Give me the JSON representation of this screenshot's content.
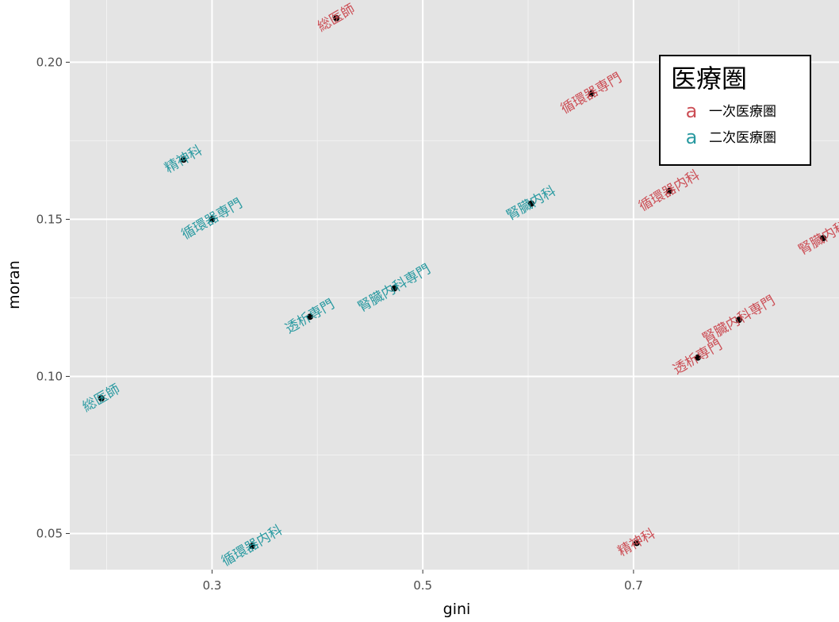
{
  "chart_data": {
    "type": "scatter",
    "xlabel": "gini",
    "ylabel": "moran",
    "xlim": [
      0.165,
      0.895
    ],
    "ylim": [
      0.0385,
      0.2198
    ],
    "x_ticks": [
      0.3,
      0.5,
      0.7
    ],
    "x_tick_labels": [
      "0.3",
      "0.5",
      "0.7"
    ],
    "y_ticks": [
      0.05,
      0.1,
      0.15,
      0.2
    ],
    "y_tick_labels": [
      "0.05",
      "0.10",
      "0.15",
      "0.20"
    ],
    "grid": true,
    "legend": {
      "title": "医療圏",
      "position": "top-right",
      "key_glyph": "a",
      "entries": [
        {
          "label": "一次医療圏",
          "color": "#CC4E55"
        },
        {
          "label": "二次医療圏",
          "color": "#2A9AA1"
        }
      ]
    },
    "series": [
      {
        "name": "一次医療圏",
        "color": "#CC4E55",
        "points": [
          {
            "x": 0.418,
            "y": 0.214,
            "label": "総医師"
          },
          {
            "x": 0.66,
            "y": 0.19,
            "label": "循環器専門"
          },
          {
            "x": 0.734,
            "y": 0.159,
            "label": "循環器内科"
          },
          {
            "x": 0.88,
            "y": 0.144,
            "label": "腎臓内科"
          },
          {
            "x": 0.8,
            "y": 0.118,
            "label": "腎臓内科専門"
          },
          {
            "x": 0.761,
            "y": 0.106,
            "label": "透析専門"
          },
          {
            "x": 0.703,
            "y": 0.047,
            "label": "精神科"
          }
        ]
      },
      {
        "name": "二次医療圏",
        "color": "#2A9AA1",
        "points": [
          {
            "x": 0.273,
            "y": 0.169,
            "label": "精神科"
          },
          {
            "x": 0.3,
            "y": 0.15,
            "label": "循環器専門"
          },
          {
            "x": 0.603,
            "y": 0.155,
            "label": "腎臓内科"
          },
          {
            "x": 0.473,
            "y": 0.128,
            "label": "腎臓内科専門"
          },
          {
            "x": 0.393,
            "y": 0.119,
            "label": "透析専門"
          },
          {
            "x": 0.195,
            "y": 0.093,
            "label": "総医師"
          },
          {
            "x": 0.338,
            "y": 0.046,
            "label": "循環器内科"
          }
        ]
      }
    ]
  }
}
